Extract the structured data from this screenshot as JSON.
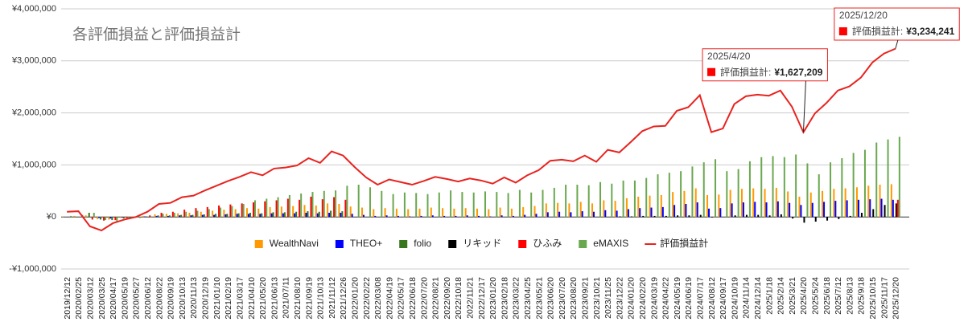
{
  "chart_data": {
    "type": "bar_line",
    "title": "各評価損益と評価損益計",
    "categories": [
      "2019/12/12",
      "2020/02/25",
      "2020/03/12",
      "2020/03/25",
      "2020/04/17",
      "2020/05/19",
      "2020/05/27",
      "2020/06/12",
      "2020/08/22",
      "2020/09/19",
      "2020/10/13",
      "2020/11/13",
      "2020/12/19",
      "2021/01/10",
      "2021/02/19",
      "2021/03/17",
      "2021/04/10",
      "2021/05/20",
      "2021/06/13",
      "2021/07/11",
      "2021/08/10",
      "2021/09/19",
      "2021/10/13",
      "2021/11/12",
      "2021/12/26",
      "2022/01/20",
      "2022/02/22",
      "2022/03/08",
      "2022/04/19",
      "2022/05/17",
      "2022/06/18",
      "2022/07/20",
      "2022/08/21",
      "2022/09/20",
      "2022/10/18",
      "2022/11/21",
      "2022/12/17",
      "2023/01/20",
      "2023/02/18",
      "2023/03/22",
      "2023/04/25",
      "2023/05/21",
      "2023/06/20",
      "2023/07/20",
      "2023/08/20",
      "2023/09/21",
      "2023/10/21",
      "2023/11/25",
      "2023/12/22",
      "2024/01/20",
      "2024/02/20",
      "2024/03/19",
      "2024/04/22",
      "2024/05/19",
      "2024/06/19",
      "2024/07/17",
      "2024/08/12",
      "2024/09/17",
      "2024/10/19",
      "2024/11/14",
      "2024/12/14",
      "2025/1/18",
      "2025/2/14",
      "2025/3/21",
      "2025/4/20",
      "2025/5/24",
      "2025/6/18",
      "2025/7/12",
      "2025/8/13",
      "2025/9/18",
      "2025/10/15",
      "2025/11/17",
      "2025/12/20"
    ],
    "series": [
      {
        "name": "WealthNavi",
        "kind": "bar",
        "color": "#ff9900",
        "values": [
          10000,
          20000,
          30000,
          -40000,
          -50000,
          -20000,
          -10000,
          20000,
          50000,
          60000,
          70000,
          80000,
          100000,
          120000,
          140000,
          150000,
          170000,
          160000,
          190000,
          200000,
          210000,
          230000,
          220000,
          260000,
          250000,
          200000,
          180000,
          150000,
          170000,
          160000,
          150000,
          160000,
          180000,
          170000,
          160000,
          170000,
          160000,
          150000,
          180000,
          160000,
          190000,
          210000,
          260000,
          270000,
          260000,
          290000,
          260000,
          320000,
          310000,
          360000,
          390000,
          410000,
          420000,
          480000,
          500000,
          550000,
          420000,
          430000,
          520000,
          540000,
          550000,
          540000,
          560000,
          490000,
          390000,
          470000,
          500000,
          540000,
          550000,
          570000,
          600000,
          620000,
          630000
        ]
      },
      {
        "name": "THEO+",
        "kind": "bar",
        "color": "#0000ff",
        "values": [
          0,
          0,
          0,
          -20000,
          -30000,
          -10000,
          0,
          10000,
          20000,
          20000,
          30000,
          30000,
          40000,
          40000,
          50000,
          60000,
          60000,
          60000,
          70000,
          70000,
          70000,
          80000,
          70000,
          80000,
          80000,
          60000,
          40000,
          20000,
          30000,
          20000,
          10000,
          20000,
          30000,
          20000,
          20000,
          30000,
          20000,
          10000,
          30000,
          20000,
          40000,
          60000,
          90000,
          100000,
          90000,
          110000,
          100000,
          130000,
          120000,
          150000,
          170000,
          180000,
          190000,
          230000,
          250000,
          280000,
          160000,
          170000,
          260000,
          280000,
          290000,
          280000,
          300000,
          270000,
          230000,
          270000,
          290000,
          310000,
          320000,
          330000,
          340000,
          350000,
          330000
        ]
      },
      {
        "name": "folio",
        "kind": "bar",
        "color": "#38761d",
        "values": [
          0,
          0,
          80000,
          -50000,
          -60000,
          -30000,
          -10000,
          10000,
          30000,
          30000,
          40000,
          40000,
          50000,
          60000,
          60000,
          70000,
          80000,
          70000,
          90000,
          90000,
          100000,
          110000,
          100000,
          120000,
          110000,
          0,
          0,
          0,
          0,
          0,
          0,
          0,
          0,
          0,
          0,
          0,
          0,
          0,
          0,
          0,
          0,
          0,
          0,
          0,
          0,
          0,
          0,
          0,
          0,
          0,
          0,
          0,
          0,
          0,
          0,
          0,
          0,
          0,
          0,
          0,
          0,
          0,
          0,
          0,
          0,
          0,
          0,
          0,
          0,
          0,
          0,
          0,
          0
        ]
      },
      {
        "name": "リキッド",
        "kind": "bar",
        "color": "#000000",
        "values": [
          0,
          0,
          0,
          0,
          0,
          0,
          0,
          0,
          0,
          0,
          0,
          0,
          0,
          0,
          0,
          0,
          0,
          0,
          0,
          0,
          0,
          0,
          0,
          0,
          0,
          0,
          0,
          0,
          0,
          0,
          0,
          0,
          0,
          0,
          0,
          0,
          0,
          0,
          0,
          0,
          0,
          0,
          0,
          0,
          0,
          0,
          0,
          0,
          10000,
          10000,
          20000,
          20000,
          20000,
          30000,
          30000,
          40000,
          -10000,
          0,
          30000,
          40000,
          40000,
          30000,
          50000,
          -30000,
          -110000,
          -90000,
          -70000,
          -40000,
          20000,
          80000,
          150000,
          230000,
          260000
        ]
      },
      {
        "name": "ひふみ",
        "kind": "bar",
        "color": "#ff0000",
        "values": [
          0,
          0,
          -50000,
          -70000,
          -60000,
          -20000,
          0,
          30000,
          80000,
          100000,
          140000,
          170000,
          190000,
          220000,
          240000,
          260000,
          280000,
          300000,
          320000,
          350000,
          330000,
          390000,
          340000,
          380000,
          330000,
          0,
          0,
          0,
          0,
          0,
          0,
          0,
          0,
          0,
          0,
          0,
          0,
          0,
          0,
          0,
          0,
          0,
          0,
          0,
          0,
          0,
          0,
          0,
          0,
          0,
          0,
          0,
          0,
          0,
          0,
          0,
          0,
          0,
          0,
          0,
          0,
          0,
          0,
          0,
          0,
          0,
          0,
          0,
          0,
          0,
          0,
          0,
          330000
        ]
      },
      {
        "name": "eMAXIS",
        "kind": "bar",
        "color": "#6aa84f",
        "values": [
          20000,
          40000,
          80000,
          -60000,
          -100000,
          -40000,
          -20000,
          10000,
          60000,
          80000,
          100000,
          120000,
          150000,
          180000,
          210000,
          250000,
          320000,
          350000,
          380000,
          420000,
          450000,
          480000,
          500000,
          510000,
          600000,
          620000,
          570000,
          500000,
          440000,
          470000,
          460000,
          440000,
          470000,
          510000,
          480000,
          470000,
          490000,
          480000,
          460000,
          520000,
          470000,
          520000,
          560000,
          620000,
          620000,
          610000,
          670000,
          640000,
          700000,
          700000,
          750000,
          820000,
          850000,
          880000,
          970000,
          1050000,
          1110000,
          880000,
          920000,
          1070000,
          1150000,
          1170000,
          1150000,
          1200000,
          1030000,
          820000,
          1050000,
          1130000,
          1230000,
          1290000,
          1430000,
          1490000,
          1540000
        ]
      },
      {
        "name": "評価損益計",
        "kind": "line",
        "color": "#e8231f",
        "values": [
          100000,
          110000,
          -180000,
          -260000,
          -120000,
          -50000,
          0,
          100000,
          250000,
          270000,
          380000,
          410000,
          510000,
          600000,
          690000,
          770000,
          860000,
          800000,
          930000,
          950000,
          990000,
          1130000,
          1040000,
          1260000,
          1180000,
          960000,
          760000,
          620000,
          720000,
          670000,
          620000,
          690000,
          770000,
          730000,
          680000,
          740000,
          700000,
          640000,
          760000,
          660000,
          800000,
          900000,
          1080000,
          1100000,
          1070000,
          1180000,
          1060000,
          1290000,
          1240000,
          1440000,
          1650000,
          1740000,
          1750000,
          2040000,
          2110000,
          2340000,
          1630000,
          1700000,
          2170000,
          2320000,
          2350000,
          2330000,
          2430000,
          2120000,
          1627209,
          1990000,
          2190000,
          2430000,
          2510000,
          2680000,
          2970000,
          3140000,
          3234241
        ]
      }
    ],
    "ylim": [
      -1000000,
      4000000
    ],
    "yticks": [
      {
        "value": -1000000,
        "label": "-¥1,000,000"
      },
      {
        "value": 0,
        "label": "¥0"
      },
      {
        "value": 1000000,
        "label": "¥1,000,000"
      },
      {
        "value": 2000000,
        "label": "¥2,000,000"
      },
      {
        "value": 3000000,
        "label": "¥3,000,000"
      },
      {
        "value": 4000000,
        "label": "¥4,000,000"
      }
    ],
    "grid": true,
    "legend": "bottom",
    "annotations": [
      {
        "date": "2025/4/20",
        "label": "評価損益計:",
        "value": 1627209,
        "value_label": "¥1,627,209"
      },
      {
        "date": "2025/12/20",
        "label": "評価損益計:",
        "value": 3234241,
        "value_label": "¥3,234,241"
      }
    ]
  }
}
